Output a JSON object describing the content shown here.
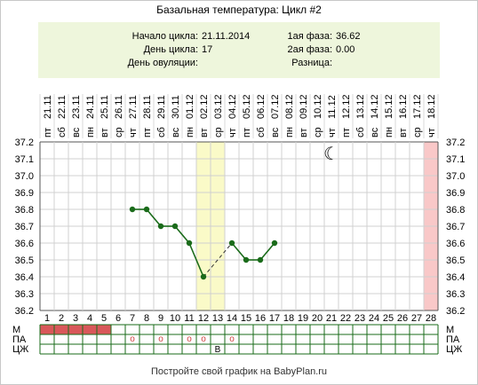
{
  "title": "Базальная температура: Цикл #2",
  "info": {
    "cycle_start_label": "Начало цикла:",
    "cycle_start_value": "21.11.2014",
    "cycle_day_label": "День цикла:",
    "cycle_day_value": "17",
    "ovulation_day_label": "День овуляции:",
    "ovulation_day_value": "",
    "phase1_label": "1ая фаза:",
    "phase1_value": "36.62",
    "phase2_label": "2ая фаза:",
    "phase2_value": "0.00",
    "difference_label": "Разница:",
    "difference_value": ""
  },
  "footer": "Постройте свой график на BabyPlan.ru",
  "chart_data": {
    "type": "line",
    "dates": [
      "21.11",
      "22.11",
      "23.11",
      "24.11",
      "25.11",
      "26.11",
      "27.11",
      "28.11",
      "29.11",
      "30.11",
      "01.12",
      "02.12",
      "03.12",
      "04.12",
      "05.12",
      "06.12",
      "07.12",
      "08.12",
      "09.12",
      "10.12",
      "11.12",
      "12.12",
      "13.12",
      "14.12",
      "15.12",
      "16.12",
      "17.12",
      "18.12"
    ],
    "weekdays": [
      "пт",
      "сб",
      "вс",
      "пн",
      "вт",
      "ср",
      "чт",
      "пт",
      "сб",
      "вс",
      "пн",
      "вт",
      "ср",
      "чт",
      "пт",
      "сб",
      "вс",
      "пн",
      "вт",
      "ср",
      "чт",
      "пт",
      "сб",
      "вс",
      "пн",
      "вт",
      "ср",
      "чт"
    ],
    "days": [
      1,
      2,
      3,
      4,
      5,
      6,
      7,
      8,
      9,
      10,
      11,
      12,
      13,
      14,
      15,
      16,
      17,
      18,
      19,
      20,
      21,
      22,
      23,
      24,
      25,
      26,
      27,
      28
    ],
    "ylim": [
      36.2,
      37.2
    ],
    "yticks": [
      "37.2",
      "37.1",
      "37.0",
      "36.9",
      "36.8",
      "36.7",
      "36.6",
      "36.5",
      "36.4",
      "36.3",
      "36.2"
    ],
    "series": [
      {
        "points": [
          [
            7,
            36.8
          ],
          [
            8,
            36.8
          ],
          [
            9,
            36.7
          ],
          [
            10,
            36.7
          ],
          [
            11,
            36.6
          ],
          [
            12,
            36.4
          ],
          [
            14,
            36.6
          ],
          [
            15,
            36.5
          ],
          [
            16,
            36.5
          ],
          [
            17,
            36.6
          ]
        ],
        "dashed_gaps": [
          [
            12,
            14
          ]
        ],
        "color": "#1a6b1a"
      }
    ],
    "highlight_days": [
      12,
      13
    ],
    "highlight_color": "#fafac8",
    "next_cycle_day": 28,
    "next_cycle_color": "#f9c8c8",
    "moon_day": 21,
    "moon_symbol": "☾",
    "bottom_rows": {
      "labels": [
        "М",
        "ПА",
        "ЦЖ"
      ],
      "menstruation_days": [
        1,
        2,
        3,
        4,
        5
      ],
      "menstruation_color": "#d9585a",
      "pa_days": [
        7,
        9,
        11,
        12,
        14
      ],
      "pa_symbol": "o",
      "cz_marks": [
        {
          "day": 13,
          "text": "В"
        }
      ]
    }
  }
}
